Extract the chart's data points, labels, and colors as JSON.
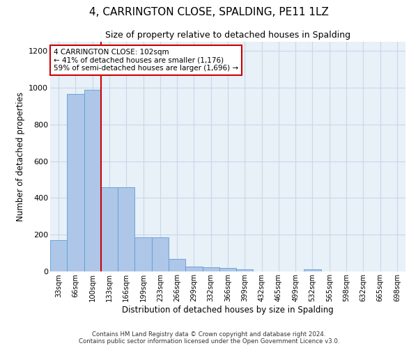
{
  "title1": "4, CARRINGTON CLOSE, SPALDING, PE11 1LZ",
  "title2": "Size of property relative to detached houses in Spalding",
  "xlabel": "Distribution of detached houses by size in Spalding",
  "ylabel": "Number of detached properties",
  "bar_labels": [
    "33sqm",
    "66sqm",
    "100sqm",
    "133sqm",
    "166sqm",
    "199sqm",
    "233sqm",
    "266sqm",
    "299sqm",
    "332sqm",
    "366sqm",
    "399sqm",
    "432sqm",
    "465sqm",
    "499sqm",
    "532sqm",
    "565sqm",
    "598sqm",
    "632sqm",
    "665sqm",
    "698sqm"
  ],
  "bar_values": [
    170,
    965,
    990,
    460,
    460,
    185,
    185,
    70,
    28,
    22,
    20,
    10,
    0,
    0,
    0,
    13,
    0,
    0,
    0,
    0,
    0
  ],
  "bar_color": "#aec6e8",
  "bar_edge_color": "#5a9fd4",
  "annotation_text": "4 CARRINGTON CLOSE: 102sqm\n← 41% of detached houses are smaller (1,176)\n59% of semi-detached houses are larger (1,696) →",
  "annotation_box_color": "#ffffff",
  "annotation_box_edge_color": "#cc0000",
  "red_line_color": "#cc0000",
  "ylim": [
    0,
    1250
  ],
  "yticks": [
    0,
    200,
    400,
    600,
    800,
    1000,
    1200
  ],
  "grid_color": "#c8d8e8",
  "bg_color": "#e8f0f8",
  "footer1": "Contains HM Land Registry data © Crown copyright and database right 2024.",
  "footer2": "Contains public sector information licensed under the Open Government Licence v3.0."
}
